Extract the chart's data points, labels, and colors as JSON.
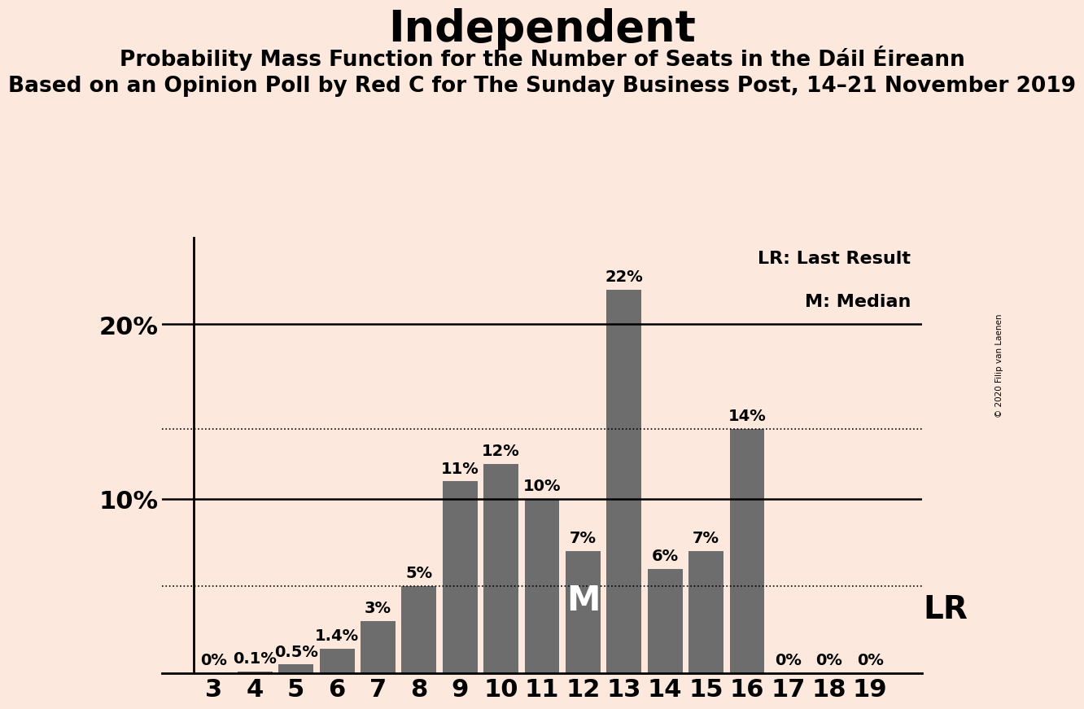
{
  "title": "Independent",
  "subtitle1": "Probability Mass Function for the Number of Seats in the Dáil Éireann",
  "subtitle2": "Based on an Opinion Poll by Red C for The Sunday Business Post, 14–21 November 2019",
  "copyright": "© 2020 Filip van Laenen",
  "categories": [
    3,
    4,
    5,
    6,
    7,
    8,
    9,
    10,
    11,
    12,
    13,
    14,
    15,
    16,
    17,
    18,
    19
  ],
  "values": [
    0.0,
    0.1,
    0.5,
    1.4,
    3.0,
    5.0,
    11.0,
    12.0,
    10.0,
    7.0,
    22.0,
    6.0,
    7.0,
    14.0,
    0.0,
    0.0,
    0.0
  ],
  "bar_color": "#6d6d6d",
  "bg_color": "#fce8dc",
  "label_fontsize": 14,
  "value_labels": [
    "0%",
    "0.1%",
    "0.5%",
    "1.4%",
    "3%",
    "5%",
    "11%",
    "12%",
    "10%",
    "7%",
    "22%",
    "6%",
    "7%",
    "14%",
    "0%",
    "0%",
    "0%"
  ],
  "ylim": [
    0,
    25
  ],
  "median_seat": 12,
  "lr_seat": 16,
  "lr_value": 14.0,
  "dotted_line_value2": 5.0,
  "legend_lr": "LR: Last Result",
  "legend_m": "M: Median",
  "tick_fontsize": 22,
  "title_fontsize": 38,
  "sub1_fontsize": 19,
  "sub2_fontsize": 19
}
